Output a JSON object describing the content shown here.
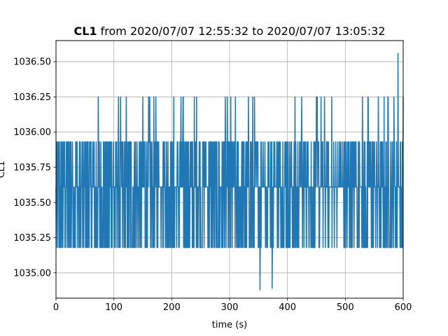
{
  "chart_data": {
    "type": "line",
    "title": {
      "bold_part": "CL1",
      "rest": " from 2020/07/07 12:55:32 to 2020/07/07 13:05:32"
    },
    "xlabel": "time (s)",
    "ylabel": "CL1",
    "xlim": [
      0,
      600
    ],
    "ylim": [
      1034.82,
      1036.65
    ],
    "x_ticks": [
      0,
      100,
      200,
      300,
      400,
      500,
      600
    ],
    "x_tick_labels": [
      "0",
      "100",
      "200",
      "300",
      "400",
      "500",
      "600"
    ],
    "y_ticks": [
      1035.0,
      1035.25,
      1035.5,
      1035.75,
      1036.0,
      1036.25,
      1036.5
    ],
    "y_tick_labels": [
      "1035.00",
      "1035.25",
      "1035.50",
      "1035.75",
      "1036.00",
      "1036.25",
      "1036.50"
    ],
    "grid": true,
    "series_color": "#1f77b4",
    "series": [
      {
        "sample_interval_s": 0.5,
        "quantized_levels": [
          1035.18,
          1035.61,
          1035.93,
          1036.25
        ],
        "value_range": [
          1034.88,
          1036.56
        ],
        "bulk_range": [
          1035.18,
          1035.93
        ],
        "upper_level_segments": [
          [
            19,
            21
          ],
          [
            50,
            53
          ],
          [
            61,
            63
          ],
          [
            67,
            69
          ],
          [
            71,
            73
          ],
          [
            76,
            80
          ],
          [
            84,
            86
          ],
          [
            92,
            94
          ],
          [
            102,
            112
          ],
          [
            115,
            118
          ],
          [
            121,
            124
          ],
          [
            126,
            128
          ],
          [
            135,
            137
          ],
          [
            140,
            145
          ],
          [
            150,
            157
          ],
          [
            160,
            170
          ],
          [
            172,
            180
          ],
          [
            183,
            200
          ],
          [
            202,
            204
          ],
          [
            212,
            228
          ],
          [
            235,
            246
          ],
          [
            258,
            262
          ],
          [
            264,
            266
          ],
          [
            272,
            276
          ],
          [
            285,
            296
          ],
          [
            300,
            304
          ],
          [
            307,
            313
          ],
          [
            315,
            317
          ],
          [
            320,
            328
          ],
          [
            332,
            345
          ],
          [
            348,
            352
          ],
          [
            358,
            368
          ],
          [
            382,
            404
          ],
          [
            410,
            436
          ],
          [
            441,
            446
          ],
          [
            450,
            466
          ],
          [
            470,
            490
          ],
          [
            495,
            499
          ],
          [
            502,
            513
          ],
          [
            516,
            518
          ],
          [
            520,
            540
          ],
          [
            543,
            552
          ],
          [
            556,
            574
          ],
          [
            576,
            580
          ],
          [
            582,
            600
          ]
        ],
        "lower_level_segments": [
          [
            93,
            95
          ],
          [
            178,
            180
          ],
          [
            182,
            184
          ],
          [
            186,
            188
          ],
          [
            258,
            262
          ],
          [
            355,
            360
          ],
          [
            366,
            370
          ],
          [
            376,
            380
          ],
          [
            420,
            424
          ],
          [
            430,
            432
          ],
          [
            434,
            436
          ],
          [
            438,
            440
          ],
          [
            448,
            452
          ],
          [
            456,
            460
          ],
          [
            466,
            468
          ],
          [
            472,
            476
          ],
          [
            486,
            492
          ],
          [
            518,
            520
          ],
          [
            526,
            528
          ],
          [
            540,
            544
          ],
          [
            550,
            552
          ],
          [
            562,
            564
          ],
          [
            584,
            586
          ],
          [
            592,
            594
          ]
        ],
        "outliers": [
          {
            "x": 352.5,
            "y": 1034.88
          },
          {
            "x": 373.5,
            "y": 1034.89
          },
          {
            "x": 591,
            "y": 1036.56
          }
        ]
      }
    ]
  }
}
